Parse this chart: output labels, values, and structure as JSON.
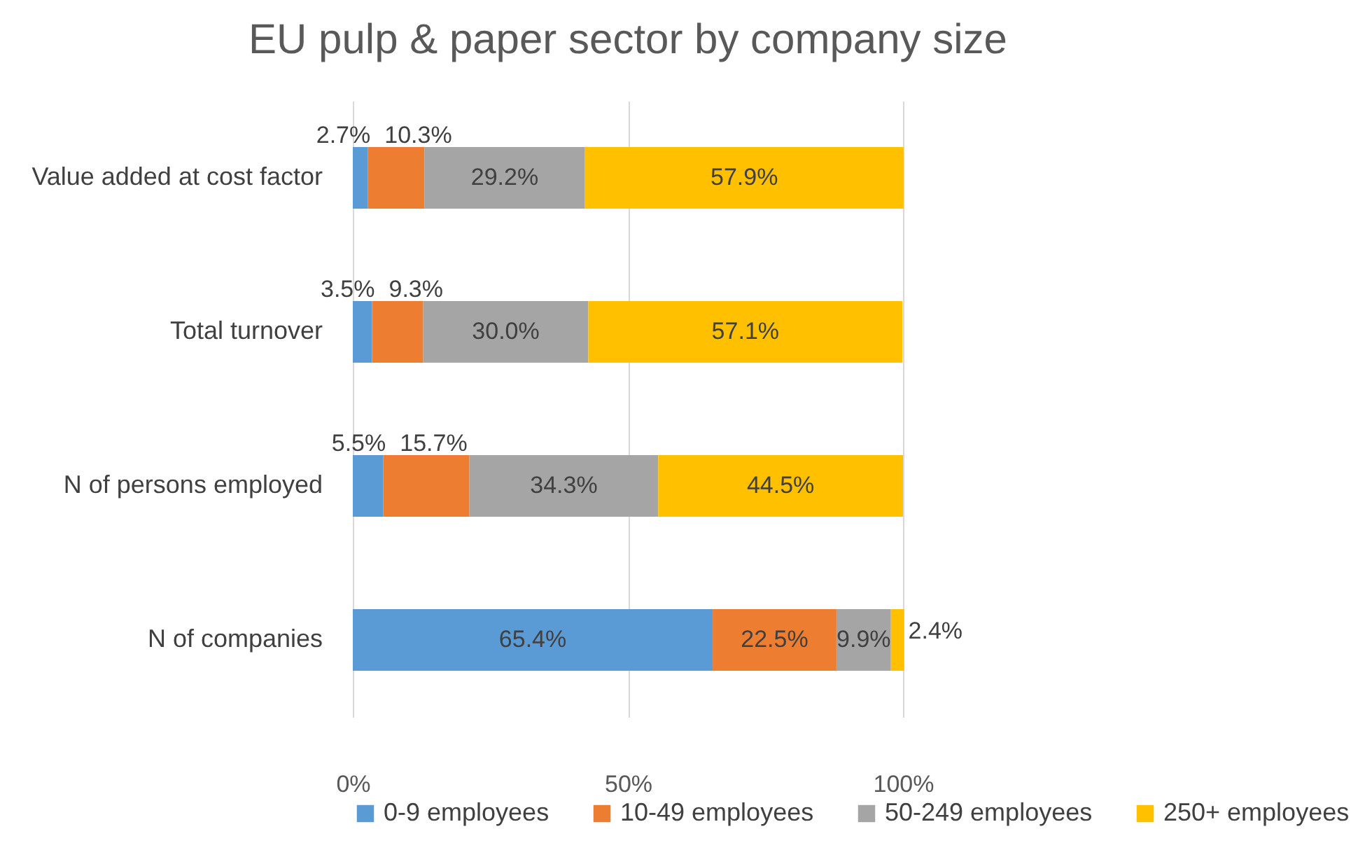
{
  "chart_data": {
    "type": "bar",
    "orientation": "horizontal",
    "stacked": true,
    "title": "EU pulp & paper sector by company size",
    "categories": [
      "Value added at cost factor",
      "Total turnover",
      "N of persons employed",
      "N of companies"
    ],
    "series": [
      {
        "name": "0-9 employees",
        "color": "#5b9bd5",
        "values": [
          2.7,
          3.5,
          5.5,
          65.4
        ],
        "value_labels": [
          "2.7%",
          "3.5%",
          "5.5%",
          "65.4%"
        ]
      },
      {
        "name": "10-49 employees",
        "color": "#ed7d31",
        "values": [
          10.3,
          9.3,
          15.7,
          22.5
        ],
        "value_labels": [
          "10.3%",
          "9.3%",
          "15.7%",
          "22.5%"
        ]
      },
      {
        "name": "50-249 employees",
        "color": "#a5a5a5",
        "values": [
          29.2,
          30.0,
          34.3,
          9.9
        ],
        "value_labels": [
          "29.2%",
          "30.0%",
          "34.3%",
          "9.9%"
        ]
      },
      {
        "name": "250+ employees",
        "color": "#ffc000",
        "values": [
          57.9,
          57.1,
          44.5,
          2.4
        ],
        "value_labels": [
          "57.9%",
          "57.1%",
          "44.5%",
          "2.4%"
        ]
      }
    ],
    "xlim": [
      0,
      100
    ],
    "xticks": [
      {
        "value": 0,
        "label": "0%"
      },
      {
        "value": 50,
        "label": "50%"
      },
      {
        "value": 100,
        "label": "100%"
      }
    ],
    "grid": "x",
    "legend": "bottom"
  }
}
